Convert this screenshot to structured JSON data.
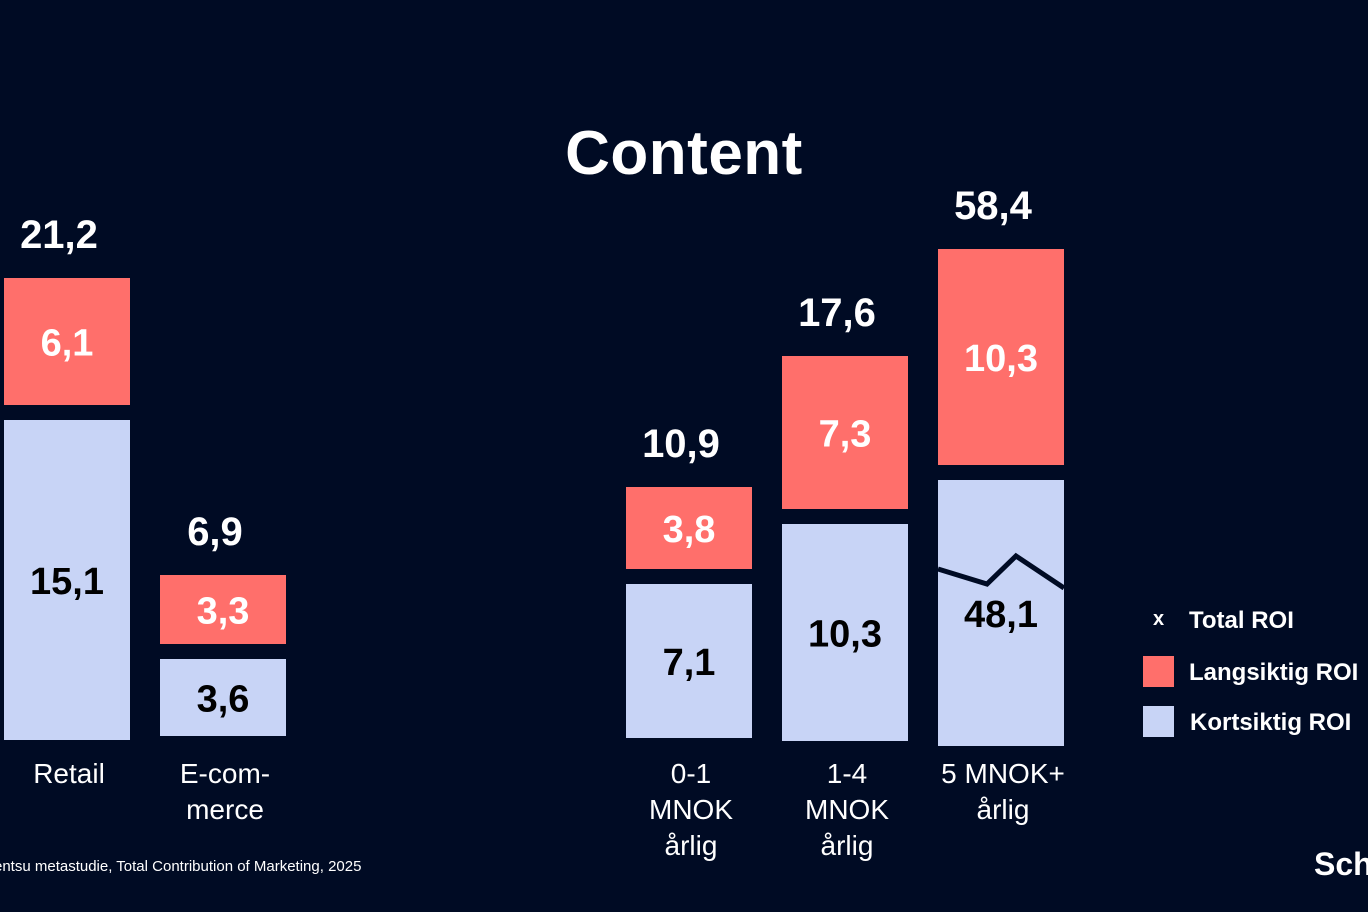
{
  "title": "Content",
  "source_note": "entsu metastudie, Total Contribution of Marketing, 2025",
  "brand": "Sch",
  "colors": {
    "background": "#000b24",
    "long_term": "#ff6f6b",
    "short_term": "#c8d4f6",
    "trend_line": "#000b24",
    "text_light": "#ffffff",
    "text_dark": "#000000"
  },
  "legend": {
    "items": [
      {
        "key": "total",
        "symbol": "x",
        "label": "Total ROI"
      },
      {
        "key": "long",
        "symbol": "",
        "label": "Langsiktig ROI"
      },
      {
        "key": "short",
        "symbol": "",
        "label": "Kortsiktig ROI"
      }
    ]
  },
  "chart_data": [
    {
      "type": "bar",
      "stacked": true,
      "title": "",
      "categories": [
        [
          "Retail"
        ],
        [
          "E-com-",
          "merce"
        ]
      ],
      "series": [
        {
          "name": "Kortsiktig ROI",
          "values": [
            15.1,
            3.6
          ],
          "labels": [
            "15,1",
            "3,6"
          ]
        },
        {
          "name": "Langsiktig ROI",
          "values": [
            6.1,
            3.3
          ],
          "labels": [
            "6,1",
            "3,3"
          ]
        }
      ],
      "totals": [
        21.2,
        6.9
      ],
      "total_labels": [
        "21,2",
        "6,9"
      ]
    },
    {
      "type": "bar",
      "stacked": true,
      "title": "Content",
      "categories": [
        [
          "0-1",
          "MNOK",
          "årlig"
        ],
        [
          "1-4",
          "MNOK",
          "årlig"
        ],
        [
          "5 MNOK+",
          "årlig"
        ]
      ],
      "series": [
        {
          "name": "Kortsiktig ROI",
          "values": [
            7.1,
            10.3,
            48.1
          ],
          "labels": [
            "7,1",
            "10,3",
            "48,1"
          ]
        },
        {
          "name": "Langsiktig ROI",
          "values": [
            3.8,
            7.3,
            10.3
          ],
          "labels": [
            "3,8",
            "7,3",
            "10,3"
          ]
        }
      ],
      "totals": [
        10.9,
        17.6,
        58.4
      ],
      "total_labels": [
        "10,9",
        "17,6",
        "58,4"
      ]
    }
  ]
}
